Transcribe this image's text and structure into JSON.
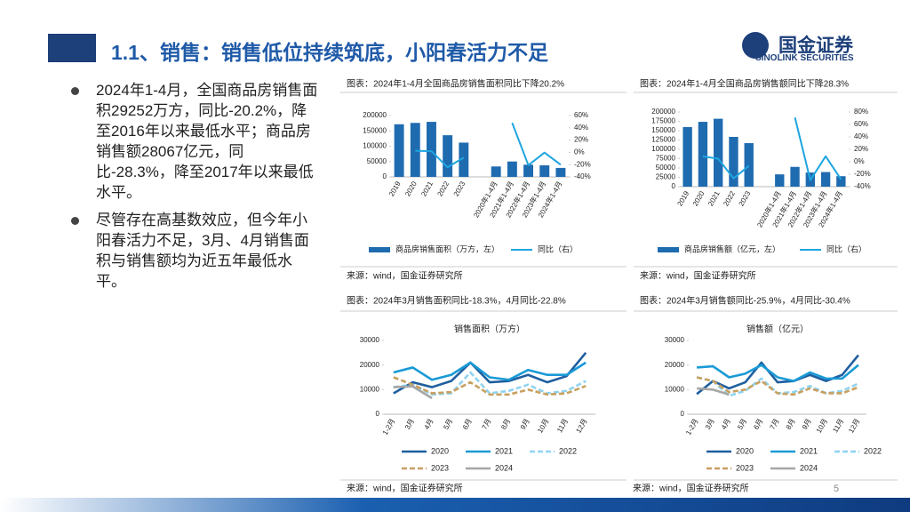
{
  "header": {
    "title": "1.1、销售：销售低位持续筑底，小阳春活力不足",
    "logo": "国金证券",
    "logo_en": "SINOLINK SECURITIES"
  },
  "bullets": [
    "2024年1-4月，全国商品房销售面积29252万方，同比-20.2%，降至2016年以来最低水平；商品房销售额28067亿元，同比-28.3%，降至2017年以来最低水平。",
    "尽管存在高基数效应，但今年小阳春活力不足，3月、4月销售面积与销售额均为近五年最低水平。"
  ],
  "sources": [
    "来源：wind，国金证券研究所",
    "来源：wind，国金证券研究所",
    "来源：wind，国金证券研究所",
    "来源：wind，国金证券研究所"
  ],
  "page_number": "5",
  "chart_data": [
    {
      "type": "combo",
      "title": "图表：2024年1-4月全国商品房销售面积同比下降20.2%",
      "categories": [
        "2019",
        "2020",
        "2021",
        "2022",
        "2023",
        null,
        "2020年1-4月",
        "2021年1-4月",
        "2022年1-4月",
        "2023年1-4月",
        "2024年1-4月"
      ],
      "series": [
        {
          "name": "商品房销售面积（万方，左）",
          "type": "bar",
          "color": "#1f6bb0",
          "values": [
            171558,
            176086,
            179433,
            135837,
            111735,
            null,
            33973,
            50138,
            39768,
            37636,
            29252
          ]
        },
        {
          "name": "同比（右）",
          "type": "line",
          "axis": "y2",
          "color": "#1ea5e0",
          "values": [
            null,
            2.6,
            1.9,
            -24.3,
            -8.5,
            null,
            null,
            48.1,
            -20.9,
            -0.4,
            -20.2
          ]
        }
      ],
      "ylim": [
        0,
        200000
      ],
      "yticks": [
        0,
        50000,
        100000,
        150000,
        200000
      ],
      "y2lim": [
        -40,
        60
      ],
      "y2ticks": [
        {
          "value": -40,
          "label": "-40%"
        },
        {
          "value": -20,
          "label": "-20%"
        },
        {
          "value": 0,
          "label": "0%"
        },
        {
          "value": 20,
          "label": "20%"
        },
        {
          "value": 40,
          "label": "40%"
        },
        {
          "value": 60,
          "label": "60%"
        }
      ]
    },
    {
      "type": "combo",
      "title": "图表：2024年1-4月全国商品房销售额同比下降28.3%",
      "categories": [
        "2019",
        "2020",
        "2021",
        "2022",
        "2023",
        null,
        "2020年1-4月",
        "2021年1-4月",
        "2022年1-4月",
        "2023年1-4月",
        "2024年1-4月"
      ],
      "series": [
        {
          "name": "商品房销售额（亿元，左）",
          "type": "bar",
          "color": "#1f6bb0",
          "values": [
            159725,
            173613,
            181930,
            133308,
            116622,
            null,
            33000,
            53000,
            37950,
            39150,
            28067
          ]
        },
        {
          "name": "同比（右）",
          "type": "line",
          "axis": "y2",
          "color": "#1ea5e0",
          "values": [
            null,
            8.7,
            4.8,
            -26.7,
            -6.5,
            null,
            null,
            71,
            -29.5,
            8.8,
            -28.3
          ]
        }
      ],
      "ylim": [
        0,
        200000
      ],
      "yticks": [
        0,
        25000,
        50000,
        75000,
        100000,
        125000,
        150000,
        175000,
        200000
      ],
      "y2lim": [
        -40,
        80
      ],
      "y2ticks": [
        {
          "value": -40,
          "label": "-40%"
        },
        {
          "value": -20,
          "label": "-20%"
        },
        {
          "value": 0,
          "label": "0%"
        },
        {
          "value": 20,
          "label": "20%"
        },
        {
          "value": 40,
          "label": "40%"
        },
        {
          "value": 60,
          "label": "60%"
        },
        {
          "value": 80,
          "label": "80%"
        }
      ]
    },
    {
      "type": "line",
      "title": "图表：2024年3月销售面积同比-18.3%，4月同比-22.8%",
      "subtitle": "销售面积（万方）",
      "categories": [
        "1-2月",
        "3月",
        "4月",
        "5月",
        "6月",
        "7月",
        "8月",
        "9月",
        "10月",
        "11月",
        "12月"
      ],
      "series": [
        {
          "name": "2020",
          "color": "#1f5fa0",
          "values": [
            8475,
            13000,
            11000,
            13500,
            21000,
            13000,
            13500,
            16000,
            13000,
            15500,
            25000
          ]
        },
        {
          "name": "2021",
          "color": "#1a9ad6",
          "values": [
            17000,
            19000,
            14000,
            16000,
            21000,
            15000,
            14000,
            18000,
            16000,
            16000,
            21000
          ]
        },
        {
          "name": "2022",
          "color": "#8fd3f0",
          "dash": true,
          "values": [
            11000,
            12000,
            8000,
            8500,
            17000,
            8500,
            9500,
            12000,
            8500,
            9500,
            13500
          ]
        },
        {
          "name": "2023",
          "color": "#c8a060",
          "dash": true,
          "values": [
            15000,
            12000,
            8500,
            9000,
            13000,
            8000,
            8000,
            10000,
            8000,
            8500,
            11500
          ]
        },
        {
          "name": "2024",
          "color": "#a6a6a6",
          "values": [
            11000,
            11300,
            6500,
            null,
            null,
            null,
            null,
            null,
            null,
            null,
            null
          ]
        }
      ],
      "ylim": [
        0,
        30000
      ],
      "yticks": [
        0,
        10000,
        20000,
        30000
      ]
    },
    {
      "type": "line",
      "title": "图表：2024年3月销售额同比-25.9%，4月同比-30.4%",
      "subtitle": "销售额（亿元）",
      "categories": [
        "1-2月",
        "3月",
        "4月",
        "5月",
        "6月",
        "7月",
        "8月",
        "9月",
        "10月",
        "11月",
        "12月"
      ],
      "series": [
        {
          "name": "2020",
          "color": "#1f5fa0",
          "values": [
            8203,
            13500,
            10500,
            13000,
            21000,
            13000,
            13500,
            16000,
            13500,
            16000,
            24000
          ]
        },
        {
          "name": "2021",
          "color": "#1a9ad6",
          "values": [
            19000,
            19500,
            15000,
            16500,
            20000,
            15000,
            13500,
            17000,
            14500,
            14500,
            20000
          ]
        },
        {
          "name": "2022",
          "color": "#8fd3f0",
          "dash": true,
          "values": [
            15000,
            13500,
            7500,
            9500,
            14500,
            8500,
            9000,
            11500,
            8500,
            9500,
            12500
          ]
        },
        {
          "name": "2023",
          "color": "#c8a060",
          "dash": true,
          "values": [
            15000,
            13500,
            9000,
            10000,
            13500,
            8500,
            8000,
            10500,
            8500,
            8500,
            11000
          ]
        },
        {
          "name": "2024",
          "color": "#a6a6a6",
          "values": [
            10500,
            10000,
            8000,
            null,
            null,
            null,
            null,
            null,
            null,
            null,
            null
          ]
        }
      ],
      "ylim": [
        0,
        30000
      ],
      "yticks": [
        0,
        10000,
        20000,
        30000
      ]
    }
  ]
}
